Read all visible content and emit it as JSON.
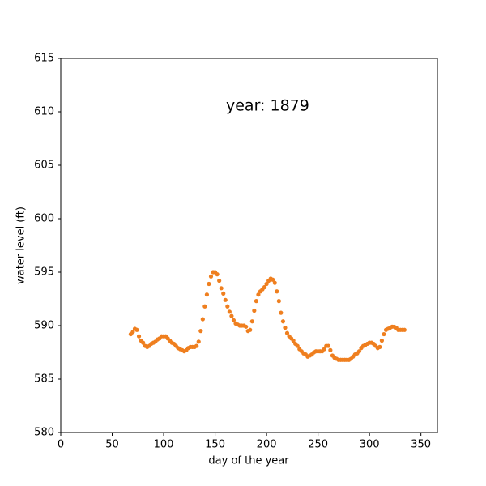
{
  "chart_data": {
    "type": "scatter",
    "annotation": "year: 1879",
    "xlabel": "day of the year",
    "ylabel": "water level (ft)",
    "xlim": [
      0,
      366
    ],
    "ylim": [
      580,
      615
    ],
    "xticks": [
      0,
      50,
      100,
      150,
      200,
      250,
      300,
      350
    ],
    "yticks": [
      580,
      585,
      590,
      595,
      600,
      605,
      610,
      615
    ],
    "color": "#ef7f1f",
    "x": [
      68,
      70,
      72,
      74,
      76,
      78,
      80,
      82,
      84,
      86,
      88,
      90,
      92,
      94,
      96,
      98,
      100,
      102,
      104,
      106,
      108,
      110,
      112,
      114,
      116,
      118,
      120,
      122,
      124,
      126,
      128,
      130,
      132,
      134,
      136,
      138,
      140,
      142,
      144,
      146,
      148,
      150,
      152,
      154,
      156,
      158,
      160,
      162,
      164,
      166,
      168,
      170,
      172,
      174,
      176,
      178,
      180,
      182,
      184,
      186,
      188,
      190,
      192,
      194,
      196,
      198,
      200,
      202,
      204,
      206,
      208,
      210,
      212,
      214,
      216,
      218,
      220,
      222,
      224,
      226,
      228,
      230,
      232,
      234,
      236,
      238,
      240,
      242,
      244,
      246,
      248,
      250,
      252,
      254,
      256,
      258,
      260,
      262,
      264,
      266,
      268,
      270,
      272,
      274,
      276,
      278,
      280,
      282,
      284,
      286,
      288,
      290,
      292,
      294,
      296,
      298,
      300,
      302,
      304,
      306,
      308,
      310,
      312,
      314,
      316,
      318,
      320,
      322,
      324,
      326,
      328,
      330,
      332,
      334
    ],
    "values": [
      589.2,
      589.4,
      589.7,
      589.6,
      589.0,
      588.6,
      588.4,
      588.1,
      588.0,
      588.1,
      588.3,
      588.4,
      588.5,
      588.7,
      588.8,
      589.0,
      589.0,
      589.0,
      588.8,
      588.6,
      588.4,
      588.3,
      588.1,
      587.9,
      587.8,
      587.7,
      587.6,
      587.7,
      587.9,
      588.0,
      588.0,
      588.0,
      588.1,
      588.5,
      589.5,
      590.6,
      591.8,
      592.9,
      593.9,
      594.6,
      595.0,
      595.0,
      594.8,
      594.2,
      593.5,
      593.0,
      592.4,
      591.8,
      591.3,
      590.9,
      590.5,
      590.2,
      590.1,
      590.0,
      590.0,
      590.0,
      589.9,
      589.5,
      589.6,
      590.4,
      591.4,
      592.3,
      592.9,
      593.2,
      593.4,
      593.6,
      593.9,
      594.2,
      594.4,
      594.3,
      594.0,
      593.2,
      592.3,
      591.2,
      590.4,
      589.8,
      589.3,
      589.0,
      588.8,
      588.6,
      588.3,
      588.1,
      587.8,
      587.6,
      587.4,
      587.3,
      587.1,
      587.2,
      587.3,
      587.5,
      587.6,
      587.6,
      587.6,
      587.6,
      587.8,
      588.1,
      588.1,
      587.7,
      587.2,
      587.0,
      586.9,
      586.8,
      586.8,
      586.8,
      586.8,
      586.8,
      586.8,
      586.9,
      587.1,
      587.3,
      587.4,
      587.6,
      587.9,
      588.1,
      588.2,
      588.3,
      588.4,
      588.4,
      588.3,
      588.1,
      587.9,
      588.0,
      588.6,
      589.2,
      589.6,
      589.7,
      589.8,
      589.9,
      589.9,
      589.8,
      589.6,
      589.6,
      589.6,
      589.6
    ]
  }
}
